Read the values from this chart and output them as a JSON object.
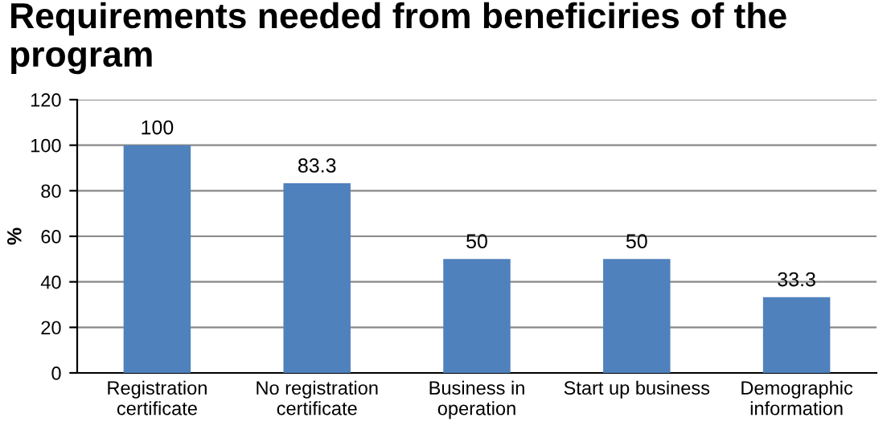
{
  "chart_data": {
    "type": "bar",
    "title": "Requirements needed from beneficiries of the program",
    "categories": [
      "Registration\ncertificate",
      "No registration\ncertificate",
      "Business in\noperation",
      "Start up business",
      "Demographic\ninformation"
    ],
    "values": [
      100,
      83.3,
      50,
      50,
      33.3
    ],
    "color": "#4f81bd",
    "ylabel": "%",
    "ylim": [
      0,
      120
    ],
    "yticks": [
      0,
      20,
      40,
      60,
      80,
      100,
      120
    ],
    "grid": "y",
    "data_labels": true
  }
}
